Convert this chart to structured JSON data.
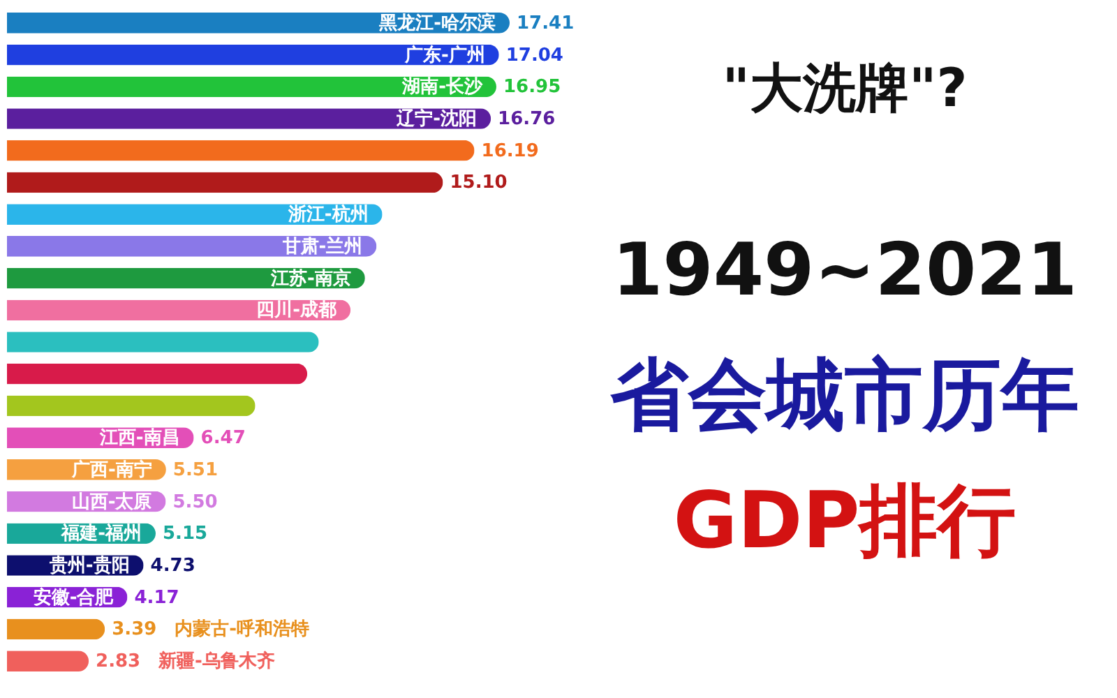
{
  "chart_data": {
    "type": "bar",
    "orientation": "horizontal",
    "title": "\"大洗牌\"?",
    "subtitle": "1949~2021",
    "annotations": [
      "省会城市历年",
      "GDP排行"
    ],
    "categories": [
      "黑龙江-哈尔滨",
      "广东-广州",
      "湖南-长沙",
      "辽宁-沈阳",
      null,
      null,
      "浙江-杭州",
      "甘肃-兰州",
      "江苏-南京",
      "四川-成都",
      null,
      null,
      null,
      "江西-南昌",
      "广西-南宁",
      "山西-太原",
      "福建-福州",
      "贵州-贵阳",
      "安徽-合肥",
      "内蒙古-呼和浩特",
      "新疆-乌鲁木齐"
    ],
    "values": [
      17.41,
      17.04,
      16.95,
      16.76,
      16.19,
      15.1,
      13.0,
      12.8,
      12.4,
      11.9,
      10.8,
      10.4,
      8.6,
      6.47,
      5.51,
      5.5,
      5.15,
      4.73,
      4.17,
      3.39,
      2.83
    ],
    "value_labels": [
      "17.41",
      "17.04",
      "16.95",
      "16.76",
      "16.19",
      "15.10",
      null,
      null,
      null,
      null,
      null,
      null,
      null,
      "6.47",
      "5.51",
      "5.50",
      "5.15",
      "4.73",
      "4.17",
      "3.39",
      "2.83"
    ],
    "colors": [
      "#1a7fc1",
      "#1f3fe0",
      "#22c33a",
      "#5b1f9e",
      "#f26b1d",
      "#b01b1b",
      "#2bb5ea",
      "#8a78e8",
      "#1e9a3f",
      "#f06fa0",
      "#2bbfbf",
      "#d81b4a",
      "#a3c61e",
      "#e34fb8",
      "#f5a040",
      "#d27ae0",
      "#19a89a",
      "#0d0f6e",
      "#8a22d6",
      "#e8901e",
      "#f0605c"
    ],
    "grid": false,
    "tick_labels": false
  }
}
